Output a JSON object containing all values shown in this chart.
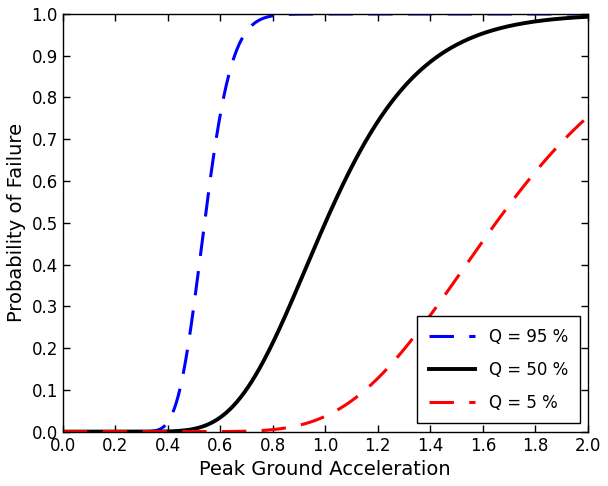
{
  "title": "",
  "xlabel": "Peak Ground Acceleration",
  "ylabel": "Probability of Failure",
  "xlim": [
    0,
    2
  ],
  "ylim": [
    0,
    1
  ],
  "xticks": [
    0,
    0.2,
    0.4,
    0.6,
    0.8,
    1.0,
    1.2,
    1.4,
    1.6,
    1.8,
    2.0
  ],
  "yticks": [
    0,
    0.1,
    0.2,
    0.3,
    0.4,
    0.5,
    0.6,
    0.7,
    0.8,
    0.9,
    1.0
  ],
  "curves": [
    {
      "label": "Q = 95 %",
      "color": "#0000FF",
      "linestyle": "dashed",
      "linewidth": 2.2,
      "median": 0.54,
      "beta": 0.15
    },
    {
      "label": "Q = 50 %",
      "color": "#000000",
      "linestyle": "solid",
      "linewidth": 2.8,
      "median": 1.0,
      "beta": 0.28
    },
    {
      "label": "Q = 5 %",
      "color": "#FF0000",
      "linestyle": "dashed",
      "linewidth": 2.2,
      "median": 1.65,
      "beta": 0.28
    }
  ],
  "legend_loc": "lower right",
  "background_color": "#FFFFFF",
  "xlabel_fontsize": 14,
  "ylabel_fontsize": 14,
  "tick_fontsize": 12,
  "legend_fontsize": 12,
  "dash_pattern": [
    8,
    5
  ]
}
